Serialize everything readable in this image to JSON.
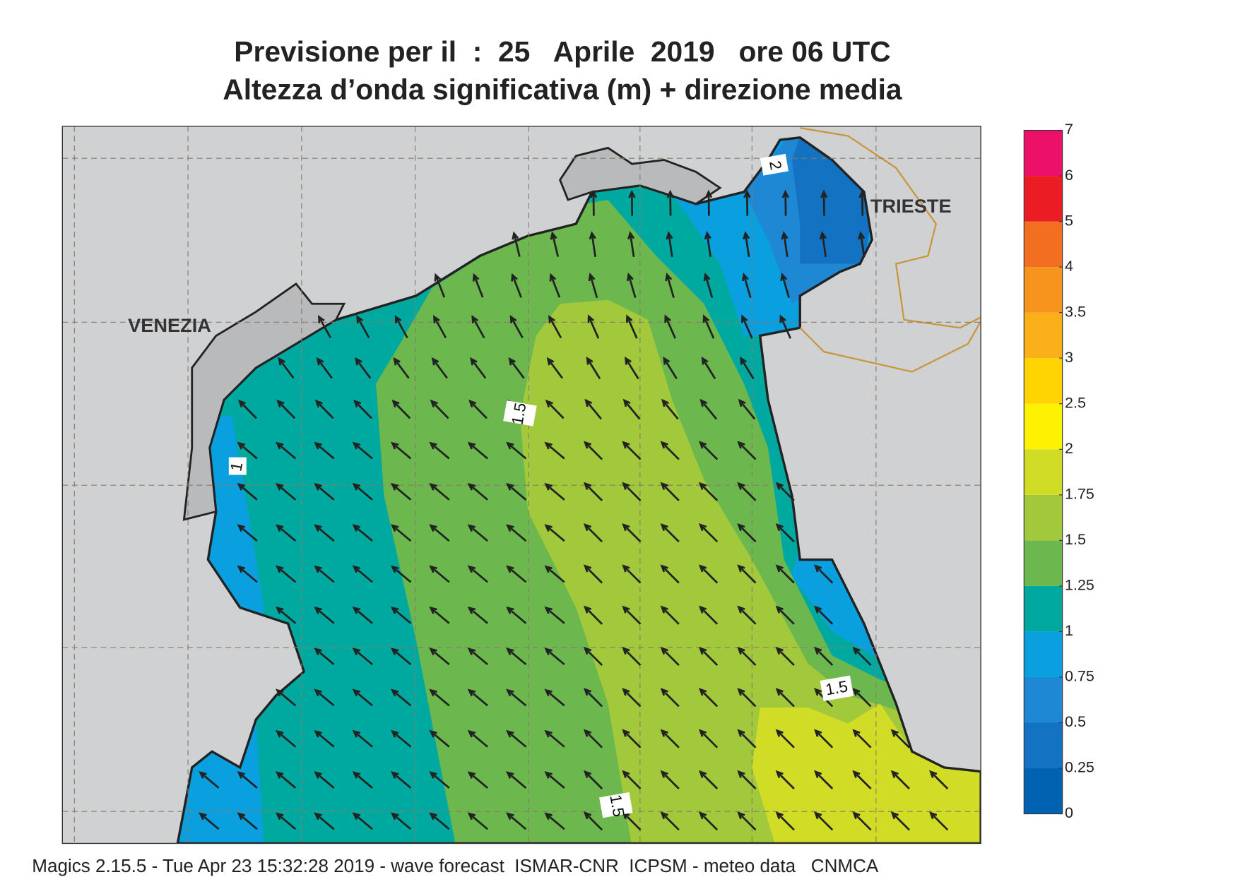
{
  "header": {
    "title_line1": "Previsione per il  :  25   Aprile  2019   ore 06 UTC",
    "title_line2": "Altezza d’onda significativa (m) + direzione media"
  },
  "map": {
    "city_labels": [
      "VENEZIA",
      "TRIESTE"
    ],
    "contour_labels": [
      "2",
      "1.5",
      "1",
      "1.5",
      "1.5"
    ]
  },
  "colorbar": {
    "levels": [
      0,
      0.25,
      0.5,
      0.75,
      1,
      1.25,
      1.5,
      1.75,
      2,
      2.5,
      3,
      3.5,
      4,
      5,
      6,
      7
    ],
    "colors": [
      "#0062b0",
      "#1472c2",
      "#1e88d4",
      "#0aa0e0",
      "#00a99f",
      "#6cb84e",
      "#a2c83c",
      "#d0dc26",
      "#fff200",
      "#ffd400",
      "#fbb01a",
      "#f7941e",
      "#f26f21",
      "#ec1c24",
      "#ec1068"
    ]
  },
  "footer": "Magics 2.15.5 - Tue Apr 23 15:32:28 2019 - wave forecast  ISMAR-CNR  ICPSM - meteo data   CNMCA"
}
